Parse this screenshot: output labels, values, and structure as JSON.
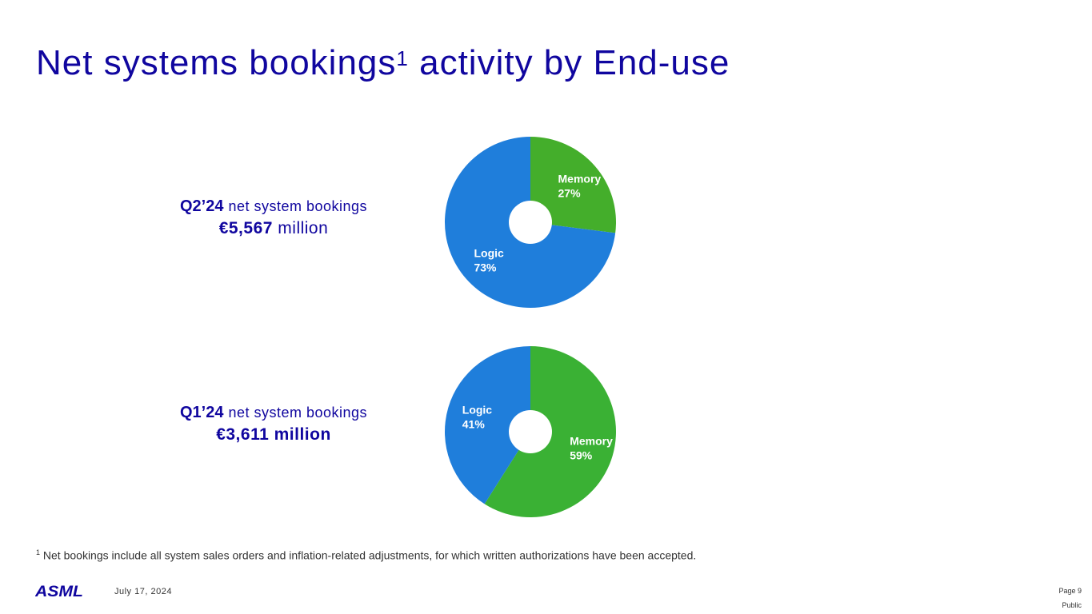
{
  "title": {
    "main": "Net systems bookings",
    "superscript": "1",
    "rest": " activity by End-use"
  },
  "chart_data": [
    {
      "type": "pie",
      "variant": "donut",
      "period": "Q2’24",
      "caption": "net system bookings",
      "amount": "€5,567",
      "amount_unit": "million",
      "slices": [
        {
          "label": "Memory",
          "value": 27,
          "display": "27%",
          "color": "#44ae2b"
        },
        {
          "label": "Logic",
          "value": 73,
          "display": "73%",
          "color": "#1f7edb"
        }
      ]
    },
    {
      "type": "pie",
      "variant": "donut",
      "period": "Q1’24",
      "caption": "net system bookings",
      "amount": "€3,611 million",
      "amount_unit": "",
      "slices": [
        {
          "label": "Memory",
          "value": 59,
          "display": "59%",
          "color": "#3ab134"
        },
        {
          "label": "Logic",
          "value": 41,
          "display": "41%",
          "color": "#1f7edb"
        }
      ]
    }
  ],
  "footnote": {
    "marker": "1",
    "text": " Net bookings include all system sales orders and inflation-related adjustments, for which written authorizations have been accepted."
  },
  "footer": {
    "logo": "ASML",
    "date": "July 17, 2024",
    "page": "Page 9",
    "classification": "Public"
  },
  "colors": {
    "brand": "#10069f",
    "memory": "#44ae2b",
    "logic": "#1f7edb"
  }
}
